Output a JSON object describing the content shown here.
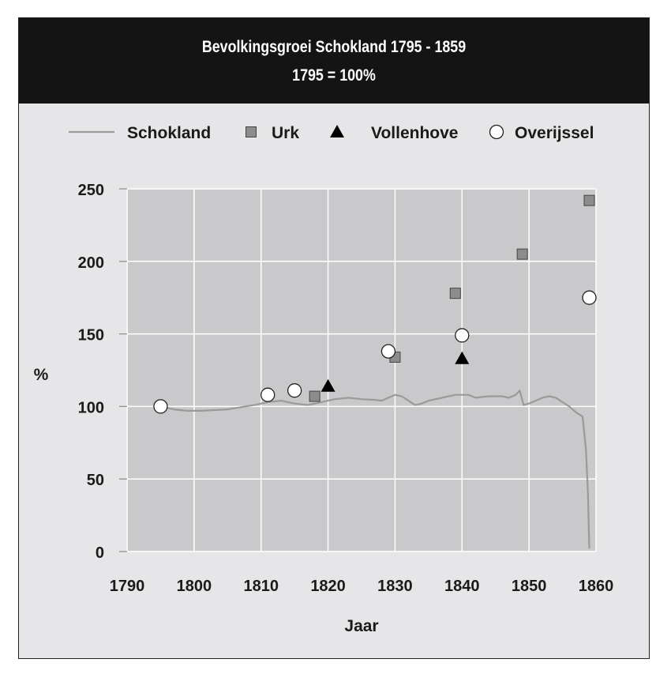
{
  "chart_data": {
    "type": "line",
    "title": "Bevolkingsgroei Schokland 1795 - 1859",
    "subtitle": "1795 = 100%",
    "xlabel": "Jaar",
    "ylabel": "%",
    "xlim": [
      1790,
      1860
    ],
    "ylim": [
      0,
      250
    ],
    "xticks": [
      1790,
      1800,
      1810,
      1820,
      1830,
      1840,
      1850,
      1860
    ],
    "yticks": [
      0,
      50,
      100,
      150,
      200,
      250
    ],
    "grid": true,
    "legend_position": "top",
    "colors": {
      "plot_bg": "#c9c9cb",
      "grid": "#ffffff",
      "line": "#9a9a9a",
      "urk": "#8c8c8c",
      "vollenhove": "#000000",
      "overijssel": "#ffffff"
    },
    "series": [
      {
        "name": "Schokland",
        "kind": "line",
        "points": [
          [
            1795,
            100
          ],
          [
            1797,
            98
          ],
          [
            1799,
            97
          ],
          [
            1801,
            97
          ],
          [
            1803,
            97.5
          ],
          [
            1805,
            98
          ],
          [
            1807,
            99.5
          ],
          [
            1809,
            101
          ],
          [
            1811,
            103
          ],
          [
            1813,
            104
          ],
          [
            1815,
            102
          ],
          [
            1817,
            101
          ],
          [
            1819,
            103
          ],
          [
            1821,
            105
          ],
          [
            1823,
            106
          ],
          [
            1825,
            105
          ],
          [
            1827,
            104.5
          ],
          [
            1828,
            104
          ],
          [
            1829,
            106
          ],
          [
            1830,
            108
          ],
          [
            1831,
            107
          ],
          [
            1832,
            104
          ],
          [
            1833,
            101
          ],
          [
            1834,
            102
          ],
          [
            1835,
            104
          ],
          [
            1837,
            106
          ],
          [
            1839,
            108
          ],
          [
            1841,
            108
          ],
          [
            1842,
            106
          ],
          [
            1844,
            107
          ],
          [
            1846,
            107
          ],
          [
            1847,
            106
          ],
          [
            1848,
            108
          ],
          [
            1848.6,
            111
          ],
          [
            1849.2,
            101
          ],
          [
            1850,
            102
          ],
          [
            1851,
            104
          ],
          [
            1852,
            106
          ],
          [
            1853,
            107
          ],
          [
            1854,
            106
          ],
          [
            1855,
            103
          ],
          [
            1856,
            100
          ],
          [
            1857,
            96
          ],
          [
            1858,
            93
          ],
          [
            1858.5,
            70
          ],
          [
            1858.8,
            40
          ],
          [
            1859,
            2
          ]
        ]
      },
      {
        "name": "Urk",
        "kind": "square",
        "x": [
          1818,
          1830,
          1839,
          1849,
          1859
        ],
        "y": [
          107,
          134,
          178,
          205,
          242
        ]
      },
      {
        "name": "Vollenhove",
        "kind": "triangle",
        "x": [
          1820,
          1840
        ],
        "y": [
          114,
          133
        ]
      },
      {
        "name": "Overijssel",
        "kind": "circle",
        "x": [
          1795,
          1811,
          1815,
          1829,
          1840,
          1859
        ],
        "y": [
          100,
          108,
          111,
          138,
          149,
          175
        ]
      }
    ]
  }
}
